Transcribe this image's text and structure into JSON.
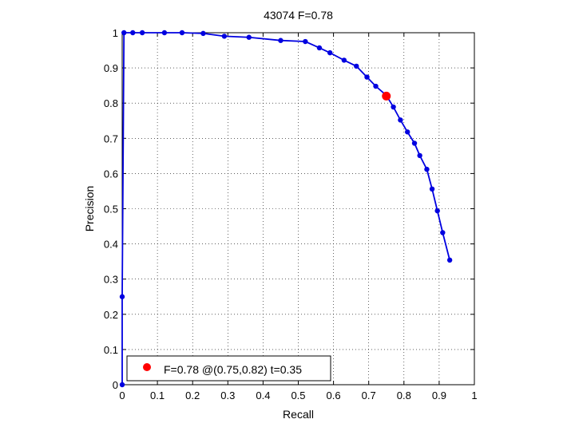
{
  "chart_data": {
    "type": "line",
    "title": "43074 F=0.78",
    "xlabel": "Recall",
    "ylabel": "Precision",
    "xlim": [
      0,
      1
    ],
    "ylim": [
      0,
      1
    ],
    "grid": true,
    "xticks": [
      "0",
      "0.1",
      "0.2",
      "0.3",
      "0.4",
      "0.5",
      "0.6",
      "0.7",
      "0.8",
      "0.9",
      "1"
    ],
    "yticks": [
      "0",
      "0.1",
      "0.2",
      "0.3",
      "0.4",
      "0.5",
      "0.6",
      "0.7",
      "0.8",
      "0.9",
      "1"
    ],
    "series": [
      {
        "color": "#0000e0",
        "x": [
          0,
          0.0,
          0.005,
          0.03,
          0.057,
          0.12,
          0.17,
          0.23,
          0.29,
          0.36,
          0.45,
          0.52,
          0.56,
          0.59,
          0.63,
          0.665,
          0.695,
          0.72,
          0.75,
          0.77,
          0.79,
          0.81,
          0.83,
          0.845,
          0.865,
          0.88,
          0.895,
          0.91,
          0.93
        ],
        "y": [
          0,
          0.25,
          1.0,
          1.0,
          1.0,
          1.0,
          1.0,
          0.998,
          0.99,
          0.987,
          0.978,
          0.975,
          0.957,
          0.943,
          0.922,
          0.905,
          0.874,
          0.848,
          0.822,
          0.789,
          0.752,
          0.718,
          0.686,
          0.651,
          0.612,
          0.556,
          0.494,
          0.432,
          0.354
        ]
      }
    ],
    "best_point": {
      "x": 0.75,
      "y": 0.82,
      "color": "#ff0000"
    },
    "legend": {
      "placement": "bottom-left",
      "label": "F=0.78 @(0.75,0.82) t=0.35"
    }
  }
}
